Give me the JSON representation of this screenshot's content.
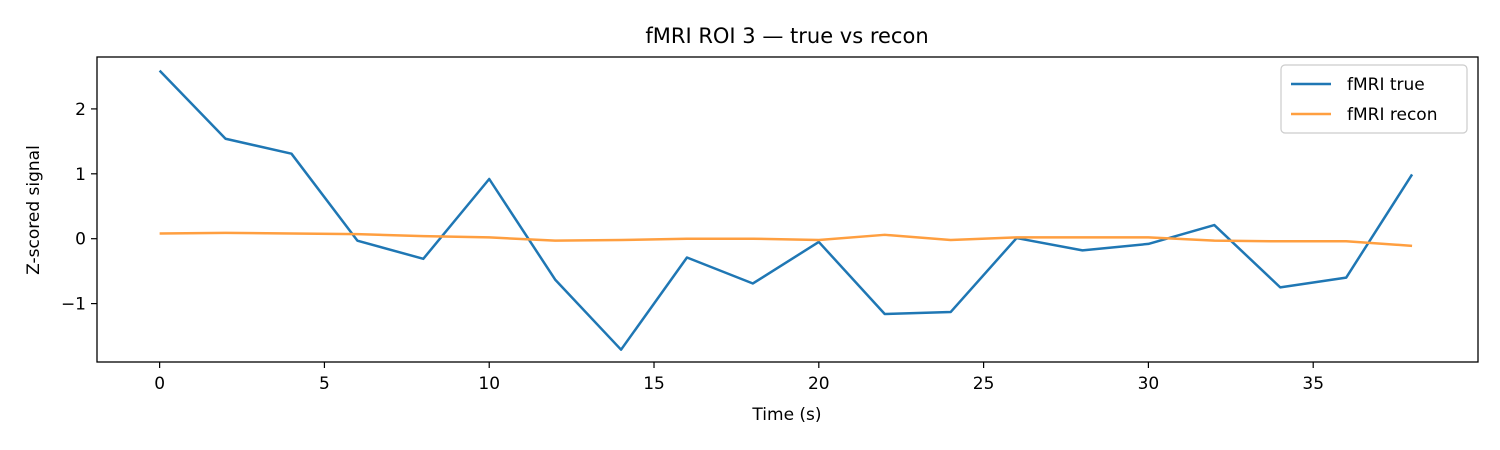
{
  "chart_data": {
    "type": "line",
    "title": "fMRI ROI 3 — true vs recon",
    "xlabel": "Time (s)",
    "ylabel": "Z-scored signal",
    "xlim": [
      -1.9,
      40
    ],
    "ylim": [
      -1.9,
      2.8
    ],
    "xticks": [
      0,
      5,
      10,
      15,
      20,
      25,
      30,
      35
    ],
    "yticks": [
      -1,
      0,
      1,
      2
    ],
    "grid": false,
    "legend_position": "top-right",
    "x": [
      0,
      2,
      4,
      6,
      8,
      10,
      12,
      14,
      16,
      18,
      20,
      22,
      24,
      26,
      28,
      30,
      32,
      34,
      36,
      38
    ],
    "series": [
      {
        "name": "fMRI true",
        "color": "#1f77b4",
        "values": [
          2.59,
          1.54,
          1.31,
          -0.03,
          -0.31,
          0.92,
          -0.63,
          -1.71,
          -0.29,
          -0.69,
          -0.05,
          -1.16,
          -1.13,
          0.01,
          -0.18,
          -0.08,
          0.21,
          -0.75,
          -0.6,
          0.99
        ]
      },
      {
        "name": "fMRI recon",
        "color": "#ff9f40",
        "values": [
          0.08,
          0.09,
          0.08,
          0.07,
          0.04,
          0.02,
          -0.03,
          -0.02,
          0.0,
          0.0,
          -0.02,
          0.06,
          -0.02,
          0.02,
          0.02,
          0.02,
          -0.03,
          -0.04,
          -0.04,
          -0.11
        ]
      }
    ]
  }
}
